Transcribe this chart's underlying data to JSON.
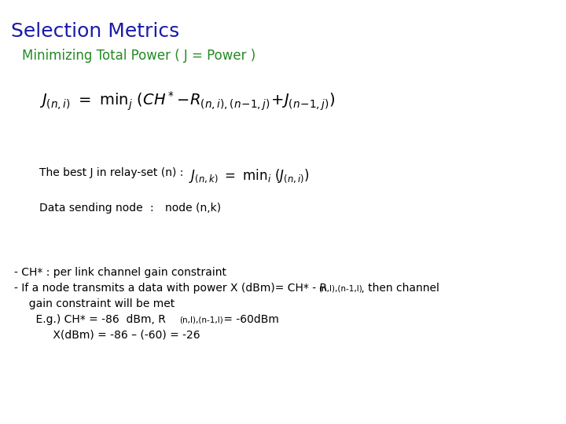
{
  "title": "Selection Metrics",
  "title_color": "#1a1aaa",
  "subtitle": "Minimizing Total Power ( J = Power )",
  "subtitle_color": "#228B22",
  "bg_color": "#ffffff",
  "box_border_color": "#aa0000",
  "formula2_text": "The best J in relay-set (n) :  ",
  "formula3_label": "Data sending node",
  "formula3_colon": ":",
  "formula3_val": "node (n,k)",
  "bullet1": "- CH* : per link channel gain constraint",
  "bullet2a": "- If a node transmits a data with power X (dBm)= CH* - R",
  "bullet2sub": "(n,l),(n-1,l)",
  "bullet2b": " , then channel",
  "bullet2c": "  gain constraint will be met",
  "bullet3a": "    E.g.) CH* = -86  dBm, R",
  "bullet3sub": "(n,l),(n-1,l)",
  "bullet3b": " = -60dBm",
  "bullet4": "         X(dBm) = -86 – (-60) = -26"
}
